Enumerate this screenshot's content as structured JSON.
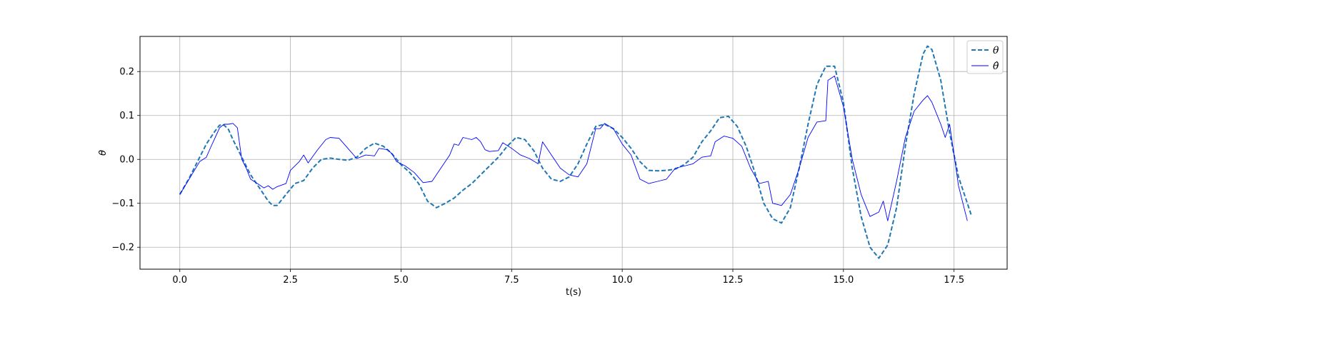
{
  "chart_data": {
    "type": "line",
    "title": "",
    "xlabel": "t(s)",
    "ylabel": "θ",
    "xlim": [
      -0.9,
      18.7
    ],
    "ylim": [
      -0.25,
      0.28
    ],
    "xticks": [
      0.0,
      2.5,
      5.0,
      7.5,
      10.0,
      12.5,
      15.0,
      17.5
    ],
    "xtick_labels": [
      "0.0",
      "2.5",
      "5.0",
      "7.5",
      "10.0",
      "12.5",
      "15.0",
      "17.5"
    ],
    "yticks": [
      -0.2,
      -0.1,
      0.0,
      0.1,
      0.2
    ],
    "ytick_labels": [
      "−0.2",
      "−0.1",
      "0.0",
      "0.1",
      "0.2"
    ],
    "grid": true,
    "legend_position": "top-right",
    "series": [
      {
        "name": "θ",
        "style": "dashed",
        "color": "#1f77b4",
        "points": [
          [
            0.0,
            -0.08
          ],
          [
            0.2,
            -0.045
          ],
          [
            0.4,
            -0.005
          ],
          [
            0.6,
            0.035
          ],
          [
            0.8,
            0.065
          ],
          [
            0.9,
            0.078
          ],
          [
            1.0,
            0.078
          ],
          [
            1.1,
            0.068
          ],
          [
            1.2,
            0.045
          ],
          [
            1.4,
            0.005
          ],
          [
            1.6,
            -0.035
          ],
          [
            1.8,
            -0.065
          ],
          [
            2.0,
            -0.095
          ],
          [
            2.1,
            -0.105
          ],
          [
            2.2,
            -0.105
          ],
          [
            2.4,
            -0.08
          ],
          [
            2.6,
            -0.055
          ],
          [
            2.8,
            -0.048
          ],
          [
            3.0,
            -0.02
          ],
          [
            3.2,
            0.0
          ],
          [
            3.4,
            0.003
          ],
          [
            3.6,
            0.0
          ],
          [
            3.8,
            -0.002
          ],
          [
            4.0,
            0.005
          ],
          [
            4.2,
            0.025
          ],
          [
            4.4,
            0.037
          ],
          [
            4.6,
            0.03
          ],
          [
            4.8,
            0.012
          ],
          [
            5.0,
            -0.012
          ],
          [
            5.2,
            -0.03
          ],
          [
            5.4,
            -0.055
          ],
          [
            5.6,
            -0.095
          ],
          [
            5.8,
            -0.11
          ],
          [
            6.0,
            -0.1
          ],
          [
            6.2,
            -0.088
          ],
          [
            6.4,
            -0.07
          ],
          [
            6.6,
            -0.055
          ],
          [
            6.8,
            -0.035
          ],
          [
            7.0,
            -0.015
          ],
          [
            7.2,
            0.005
          ],
          [
            7.4,
            0.03
          ],
          [
            7.6,
            0.05
          ],
          [
            7.8,
            0.045
          ],
          [
            8.0,
            0.02
          ],
          [
            8.2,
            -0.02
          ],
          [
            8.4,
            -0.045
          ],
          [
            8.6,
            -0.05
          ],
          [
            8.8,
            -0.04
          ],
          [
            9.0,
            -0.01
          ],
          [
            9.2,
            0.035
          ],
          [
            9.4,
            0.075
          ],
          [
            9.6,
            0.08
          ],
          [
            9.8,
            0.07
          ],
          [
            10.0,
            0.05
          ],
          [
            10.2,
            0.025
          ],
          [
            10.4,
            -0.005
          ],
          [
            10.6,
            -0.025
          ],
          [
            10.8,
            -0.026
          ],
          [
            11.0,
            -0.025
          ],
          [
            11.2,
            -0.022
          ],
          [
            11.4,
            -0.012
          ],
          [
            11.6,
            0.005
          ],
          [
            11.8,
            0.04
          ],
          [
            12.0,
            0.065
          ],
          [
            12.2,
            0.095
          ],
          [
            12.4,
            0.098
          ],
          [
            12.6,
            0.075
          ],
          [
            12.8,
            0.03
          ],
          [
            13.0,
            -0.03
          ],
          [
            13.2,
            -0.1
          ],
          [
            13.4,
            -0.135
          ],
          [
            13.6,
            -0.145
          ],
          [
            13.8,
            -0.11
          ],
          [
            14.0,
            -0.02
          ],
          [
            14.2,
            0.08
          ],
          [
            14.4,
            0.17
          ],
          [
            14.6,
            0.212
          ],
          [
            14.8,
            0.212
          ],
          [
            15.0,
            0.13
          ],
          [
            15.2,
            -0.02
          ],
          [
            15.4,
            -0.13
          ],
          [
            15.6,
            -0.2
          ],
          [
            15.8,
            -0.225
          ],
          [
            16.0,
            -0.195
          ],
          [
            16.2,
            -0.11
          ],
          [
            16.4,
            0.03
          ],
          [
            16.6,
            0.15
          ],
          [
            16.8,
            0.24
          ],
          [
            16.9,
            0.258
          ],
          [
            17.0,
            0.25
          ],
          [
            17.2,
            0.18
          ],
          [
            17.4,
            0.06
          ],
          [
            17.6,
            -0.04
          ],
          [
            17.8,
            -0.1
          ],
          [
            17.9,
            -0.13
          ]
        ]
      },
      {
        "name": "θ̂",
        "style": "solid",
        "color": "#0000ff",
        "points": [
          [
            0.0,
            -0.08
          ],
          [
            0.15,
            -0.055
          ],
          [
            0.3,
            -0.03
          ],
          [
            0.45,
            -0.005
          ],
          [
            0.6,
            0.005
          ],
          [
            0.7,
            0.028
          ],
          [
            0.8,
            0.05
          ],
          [
            0.9,
            0.072
          ],
          [
            1.0,
            0.08
          ],
          [
            1.1,
            0.08
          ],
          [
            1.2,
            0.082
          ],
          [
            1.3,
            0.072
          ],
          [
            1.4,
            0.0
          ],
          [
            1.5,
            -0.02
          ],
          [
            1.6,
            -0.045
          ],
          [
            1.8,
            -0.058
          ],
          [
            1.9,
            -0.065
          ],
          [
            2.0,
            -0.06
          ],
          [
            2.1,
            -0.068
          ],
          [
            2.2,
            -0.062
          ],
          [
            2.4,
            -0.055
          ],
          [
            2.5,
            -0.025
          ],
          [
            2.7,
            -0.005
          ],
          [
            2.8,
            0.01
          ],
          [
            2.9,
            -0.008
          ],
          [
            3.1,
            0.02
          ],
          [
            3.3,
            0.045
          ],
          [
            3.4,
            0.05
          ],
          [
            3.6,
            0.048
          ],
          [
            3.8,
            0.025
          ],
          [
            4.0,
            0.002
          ],
          [
            4.2,
            0.01
          ],
          [
            4.4,
            0.008
          ],
          [
            4.5,
            0.025
          ],
          [
            4.7,
            0.022
          ],
          [
            4.8,
            0.012
          ],
          [
            4.9,
            -0.005
          ],
          [
            5.1,
            -0.015
          ],
          [
            5.3,
            -0.03
          ],
          [
            5.5,
            -0.053
          ],
          [
            5.7,
            -0.05
          ],
          [
            5.9,
            -0.02
          ],
          [
            6.1,
            0.01
          ],
          [
            6.2,
            0.035
          ],
          [
            6.3,
            0.032
          ],
          [
            6.4,
            0.05
          ],
          [
            6.6,
            0.045
          ],
          [
            6.7,
            0.05
          ],
          [
            6.8,
            0.04
          ],
          [
            6.9,
            0.022
          ],
          [
            7.0,
            0.018
          ],
          [
            7.2,
            0.02
          ],
          [
            7.3,
            0.038
          ],
          [
            7.5,
            0.025
          ],
          [
            7.7,
            0.01
          ],
          [
            7.9,
            0.002
          ],
          [
            8.1,
            -0.01
          ],
          [
            8.2,
            0.04
          ],
          [
            8.4,
            0.01
          ],
          [
            8.6,
            -0.02
          ],
          [
            8.8,
            -0.035
          ],
          [
            9.0,
            -0.04
          ],
          [
            9.2,
            -0.01
          ],
          [
            9.4,
            0.07
          ],
          [
            9.5,
            0.07
          ],
          [
            9.6,
            0.082
          ],
          [
            9.8,
            0.07
          ],
          [
            10.0,
            0.035
          ],
          [
            10.2,
            0.01
          ],
          [
            10.4,
            -0.045
          ],
          [
            10.6,
            -0.055
          ],
          [
            10.8,
            -0.05
          ],
          [
            11.0,
            -0.045
          ],
          [
            11.2,
            -0.02
          ],
          [
            11.4,
            -0.015
          ],
          [
            11.6,
            -0.01
          ],
          [
            11.8,
            0.005
          ],
          [
            12.0,
            0.008
          ],
          [
            12.1,
            0.04
          ],
          [
            12.3,
            0.053
          ],
          [
            12.5,
            0.048
          ],
          [
            12.7,
            0.03
          ],
          [
            12.9,
            -0.02
          ],
          [
            13.1,
            -0.055
          ],
          [
            13.3,
            -0.05
          ],
          [
            13.4,
            -0.1
          ],
          [
            13.6,
            -0.105
          ],
          [
            13.8,
            -0.08
          ],
          [
            14.0,
            -0.02
          ],
          [
            14.2,
            0.05
          ],
          [
            14.4,
            0.085
          ],
          [
            14.6,
            0.088
          ],
          [
            14.65,
            0.18
          ],
          [
            14.8,
            0.19
          ],
          [
            15.0,
            0.12
          ],
          [
            15.2,
            0.0
          ],
          [
            15.4,
            -0.08
          ],
          [
            15.6,
            -0.13
          ],
          [
            15.8,
            -0.12
          ],
          [
            15.9,
            -0.095
          ],
          [
            16.0,
            -0.14
          ],
          [
            16.2,
            -0.05
          ],
          [
            16.4,
            0.05
          ],
          [
            16.6,
            0.11
          ],
          [
            16.8,
            0.135
          ],
          [
            16.9,
            0.145
          ],
          [
            17.0,
            0.13
          ],
          [
            17.2,
            0.08
          ],
          [
            17.3,
            0.05
          ],
          [
            17.4,
            0.08
          ],
          [
            17.6,
            -0.06
          ],
          [
            17.8,
            -0.14
          ]
        ]
      }
    ]
  }
}
